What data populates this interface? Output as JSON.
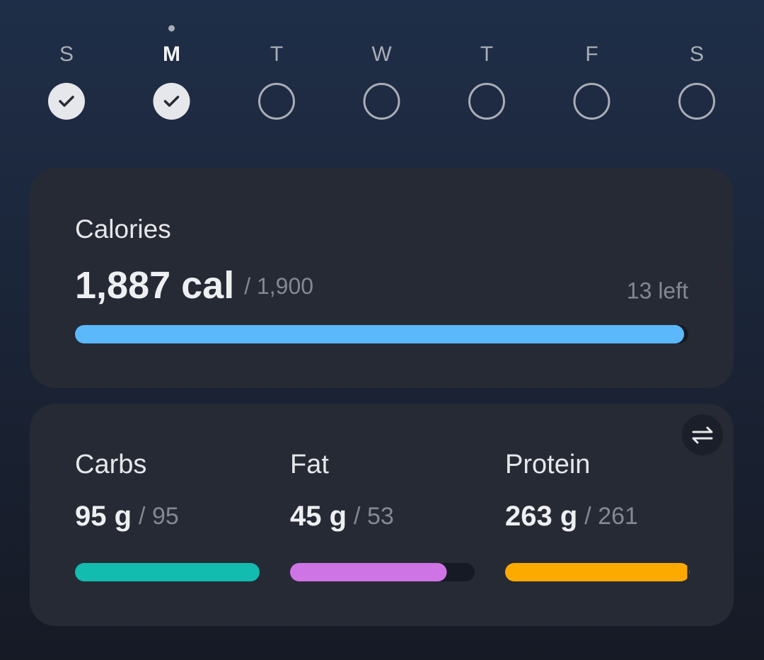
{
  "days": [
    {
      "label": "S",
      "checked": true
    },
    {
      "label": "M",
      "checked": true
    },
    {
      "label": "T",
      "checked": false
    },
    {
      "label": "W",
      "checked": false
    },
    {
      "label": "T",
      "checked": false
    },
    {
      "label": "F",
      "checked": false
    },
    {
      "label": "S",
      "checked": false
    }
  ],
  "selected_day": 1,
  "calories": {
    "title": "Calories",
    "consumed": {
      "value": 1887,
      "label": "1,887 cal"
    },
    "goal": {
      "value": 1900,
      "label": "/ 1,900"
    },
    "remaining": {
      "value": 13,
      "label": "13 left"
    },
    "color": "#5ab8fb"
  },
  "macros": [
    {
      "name": "Carbs",
      "consumed": {
        "value": 95,
        "label": "95 g"
      },
      "goal": {
        "value": 95,
        "label": "/ 95"
      },
      "color": "#12bcae"
    },
    {
      "name": "Fat",
      "consumed": {
        "value": 45,
        "label": "45 g"
      },
      "goal": {
        "value": 53,
        "label": "/ 53"
      },
      "color": "#cf74e4"
    },
    {
      "name": "Protein",
      "consumed": {
        "value": 263,
        "label": "263 g"
      },
      "goal": {
        "value": 261,
        "label": "/ 261"
      },
      "color": "#fdaa00"
    }
  ]
}
